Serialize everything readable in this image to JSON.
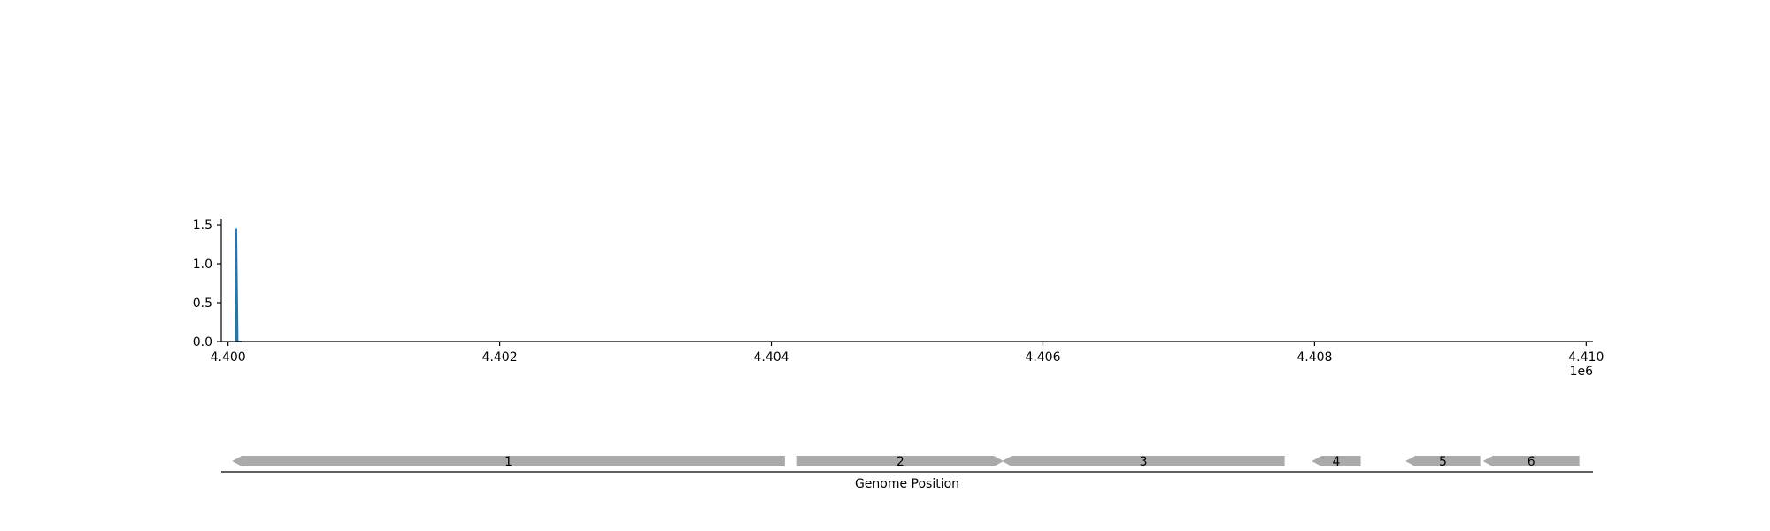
{
  "chart_data": [
    {
      "type": "line",
      "title": "",
      "xlabel": "",
      "ylabel": "",
      "x_offset_label": "1e6",
      "xlim": [
        4.39995,
        4.41005
      ],
      "ylim": [
        0,
        1.58
      ],
      "x_ticks": [
        4.4,
        4.402,
        4.404,
        4.406,
        4.408,
        4.41
      ],
      "x_tick_labels": [
        "4.400",
        "4.402",
        "4.404",
        "4.406",
        "4.408",
        "4.410"
      ],
      "y_ticks": [
        0.0,
        0.5,
        1.0,
        1.5
      ],
      "y_tick_labels": [
        "0.0",
        "0.5",
        "1.0",
        "1.5"
      ],
      "grid": false,
      "series": [
        {
          "color": "#1f77b4",
          "x": [
            4.40006,
            4.40006,
            4.40007,
            4.4001
          ],
          "y": [
            0,
            1.45,
            0,
            0
          ]
        }
      ]
    },
    {
      "type": "gene-map",
      "xlabel": "Genome Position",
      "xlim": [
        4.39995,
        4.41005
      ],
      "color": "#aaaaaa",
      "genes": [
        {
          "label": "1",
          "start": 4.40003,
          "end": 4.4041,
          "strand": "-"
        },
        {
          "label": "2",
          "start": 4.40419,
          "end": 4.40571,
          "strand": "+"
        },
        {
          "label": "3",
          "start": 4.4057,
          "end": 4.40778,
          "strand": "-"
        },
        {
          "label": "4",
          "start": 4.40798,
          "end": 4.40834,
          "strand": "-"
        },
        {
          "label": "5",
          "start": 4.40867,
          "end": 4.40922,
          "strand": "-"
        },
        {
          "label": "6",
          "start": 4.40924,
          "end": 4.40995,
          "strand": "-"
        }
      ]
    }
  ]
}
